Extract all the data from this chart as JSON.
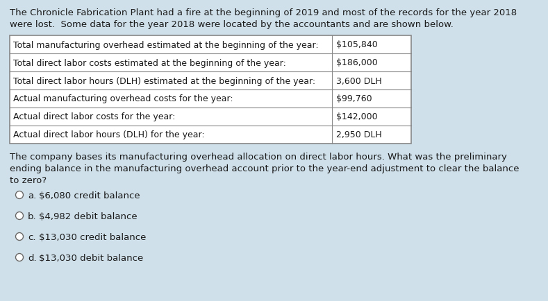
{
  "background_color": "#cfe0ea",
  "intro_text_line1": "The Chronicle Fabrication Plant had a fire at the beginning of 2019 and most of the records for the year 2018",
  "intro_text_line2": "were lost.  Some data for the year 2018 were located by the accountants and are shown below.",
  "table_rows": [
    [
      "Total manufacturing overhead estimated at the beginning of the year:",
      "$105,840"
    ],
    [
      "Total direct labor costs estimated at the beginning of the year:",
      "$186,000"
    ],
    [
      "Total direct labor hours (DLH) estimated at the beginning of the year:",
      "3,600 DLH"
    ],
    [
      "Actual manufacturing overhead costs for the year:",
      "$99,760"
    ],
    [
      "Actual direct labor costs for the year:",
      "$142,000"
    ],
    [
      "Actual direct labor hours (DLH) for the year:",
      "2,950 DLH"
    ]
  ],
  "question_text_line1": "The company bases its manufacturing overhead allocation on direct labor hours. What was the preliminary",
  "question_text_line2": "ending balance in the manufacturing overhead account prior to the year-end adjustment to clear the balance",
  "question_text_line3": "to zero?",
  "choices": [
    "$6,080 credit balance",
    "$4,982 debit balance",
    "$13,030 credit balance",
    "$13,030 debit balance"
  ],
  "choice_labels": [
    "a.",
    "b.",
    "c.",
    "d."
  ],
  "text_color": "#1a1a1a",
  "table_border_color": "#888888",
  "table_bg": "#ffffff",
  "font_size_intro": 9.5,
  "font_size_table": 9.0,
  "font_size_question": 9.5,
  "font_size_choices": 9.5
}
